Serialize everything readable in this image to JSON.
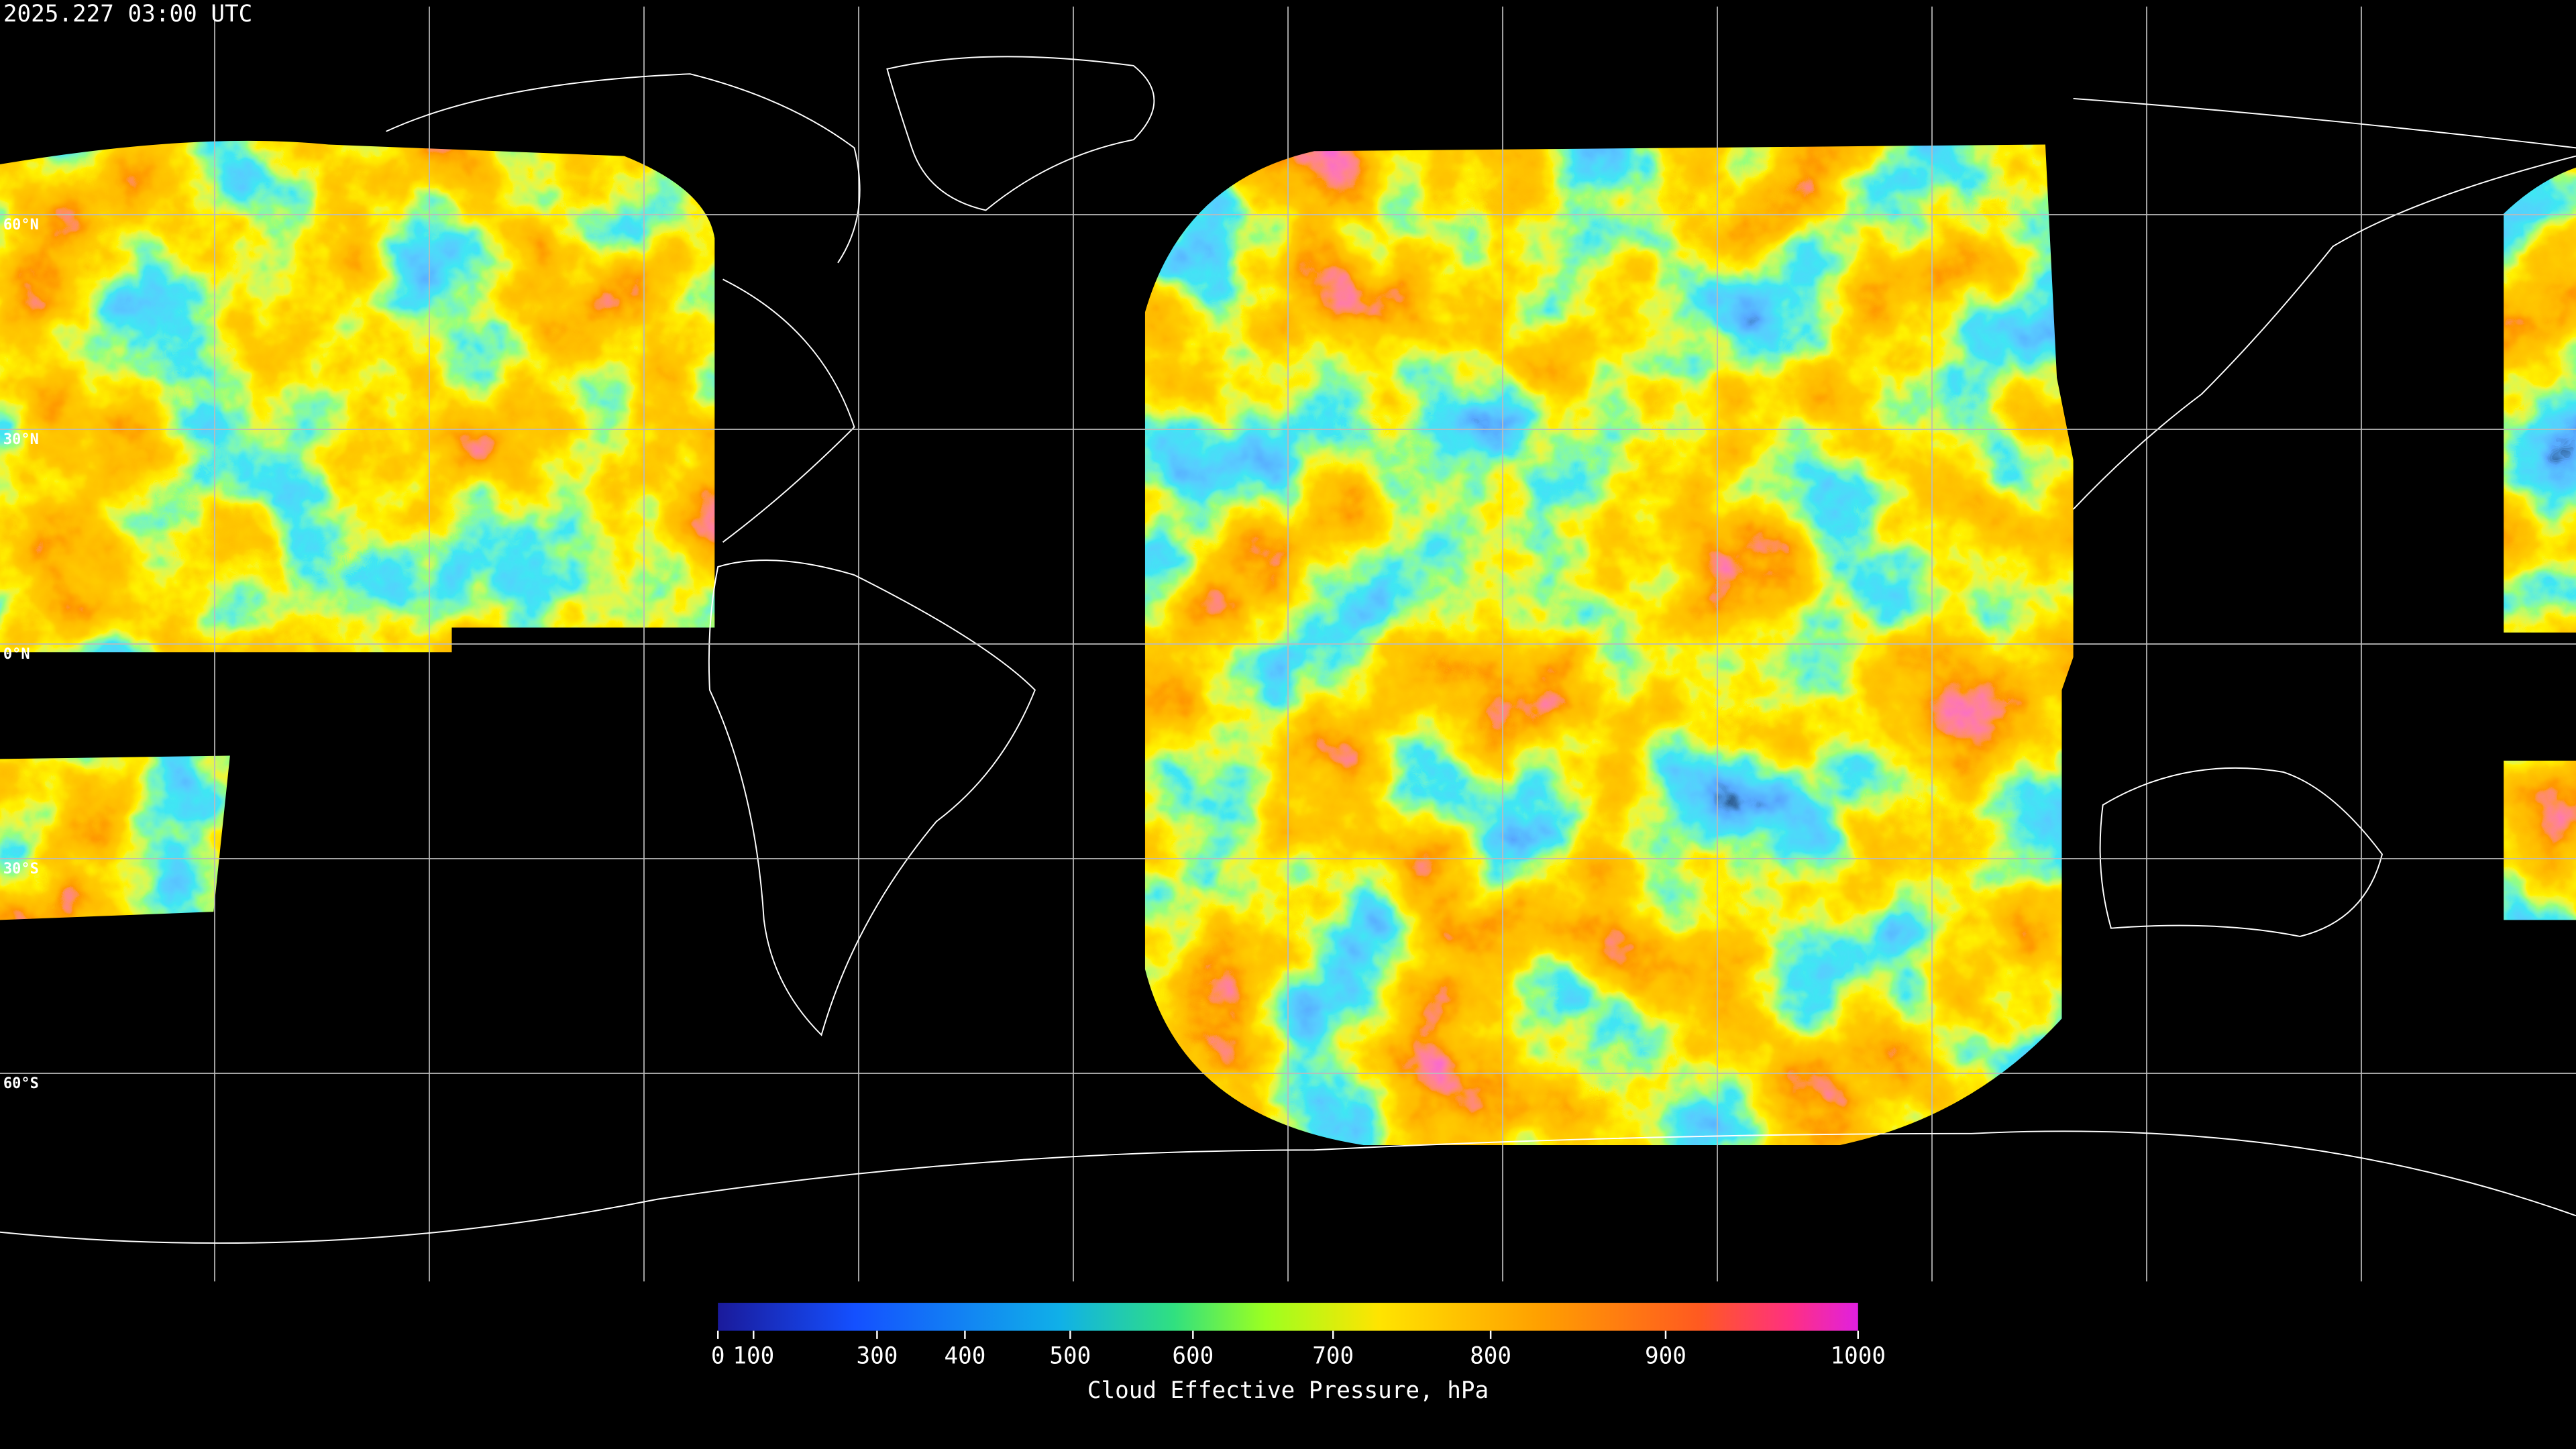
{
  "timestamp": "2025.227 03:00 UTC",
  "latitudes": [
    {
      "value": 60,
      "label": "60°N"
    },
    {
      "value": 30,
      "label": "30°N"
    },
    {
      "value": 0,
      "label": "0°N"
    },
    {
      "value": -30,
      "label": "30°S"
    },
    {
      "value": -60,
      "label": "60°S"
    }
  ],
  "colorbar": {
    "title": "Cloud Effective Pressure, hPa",
    "lim": [
      0,
      1000
    ],
    "ticks": [
      0,
      100,
      300,
      400,
      500,
      600,
      700,
      800,
      900,
      1000
    ]
  }
}
